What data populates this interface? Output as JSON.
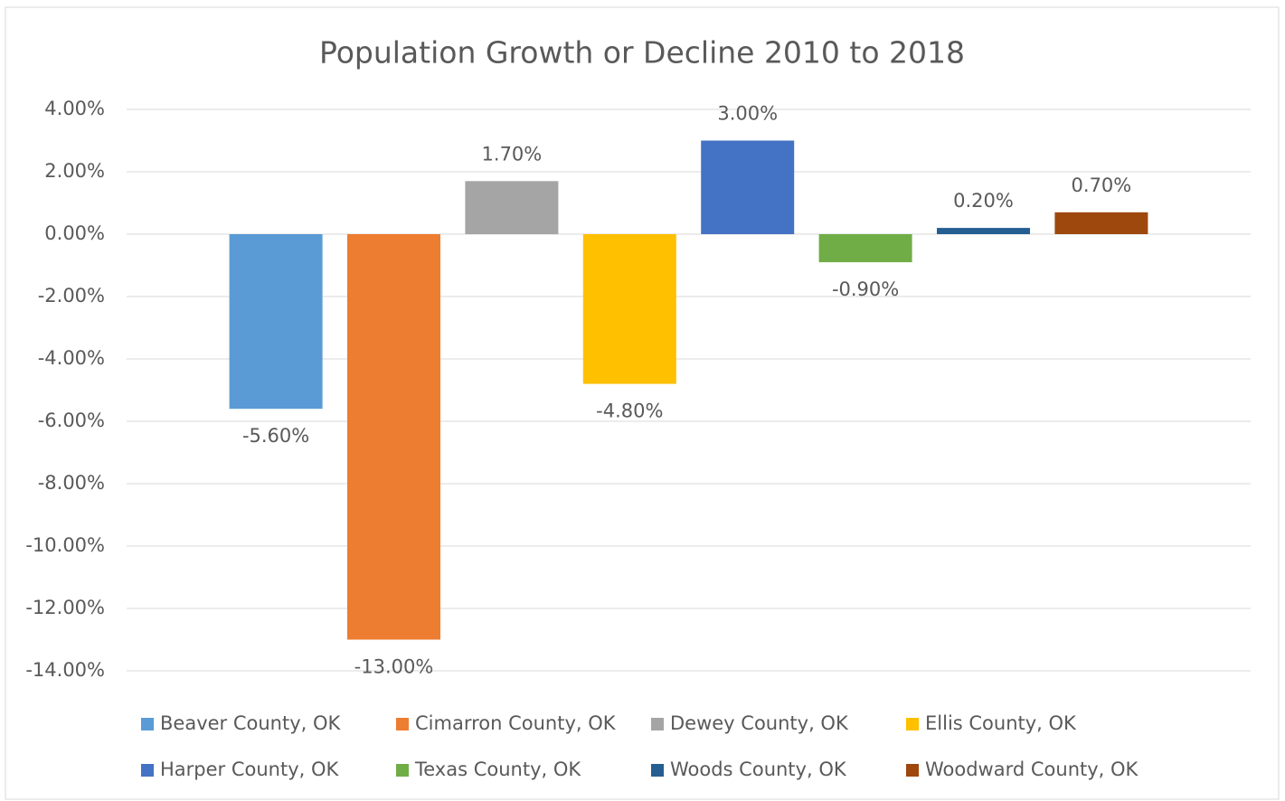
{
  "chart_data": {
    "type": "bar",
    "title": "Population Growth or Decline 2010 to 2018",
    "series": [
      {
        "name": "Beaver County, OK",
        "color": "#5b9bd5",
        "values": [
          -5.6
        ],
        "value_labels": [
          "-5.60%"
        ]
      },
      {
        "name": "Cimarron County, OK",
        "color": "#ed7d31",
        "values": [
          -13
        ],
        "value_labels": [
          "-13.00%"
        ]
      },
      {
        "name": "Dewey County, OK",
        "color": "#a5a5a5",
        "values": [
          1.7
        ],
        "value_labels": [
          "1.70%"
        ]
      },
      {
        "name": "Ellis County, OK",
        "color": "#ffc000",
        "values": [
          -4.8
        ],
        "value_labels": [
          "-4.80%"
        ]
      },
      {
        "name": "Harper County, OK",
        "color": "#4472c4",
        "values": [
          3
        ],
        "value_labels": [
          "3.00%"
        ]
      },
      {
        "name": "Texas County, OK",
        "color": "#70ad47",
        "values": [
          -0.9
        ],
        "value_labels": [
          "-0.90%"
        ]
      },
      {
        "name": "Woods County, OK",
        "color": "#255e91",
        "values": [
          0.2
        ],
        "value_labels": [
          "0.20%"
        ]
      },
      {
        "name": "Woodward County, OK",
        "color": "#9e480e",
        "values": [
          0.7
        ],
        "value_labels": [
          "0.70%"
        ]
      }
    ],
    "ylim": [
      -14,
      4
    ],
    "yticks": [
      {
        "value": 4,
        "label": "4.00%"
      },
      {
        "value": 2,
        "label": "2.00%"
      },
      {
        "value": 0,
        "label": "0.00%"
      },
      {
        "value": -2,
        "label": "-2.00%"
      },
      {
        "value": -4,
        "label": "-4.00%"
      },
      {
        "value": -6,
        "label": "-6.00%"
      },
      {
        "value": -8,
        "label": "-8.00%"
      },
      {
        "value": -10,
        "label": "-10.00%"
      },
      {
        "value": -12,
        "label": "-12.00%"
      },
      {
        "value": -14,
        "label": "-14.00%"
      }
    ],
    "grid": true,
    "legend": "bottom"
  }
}
